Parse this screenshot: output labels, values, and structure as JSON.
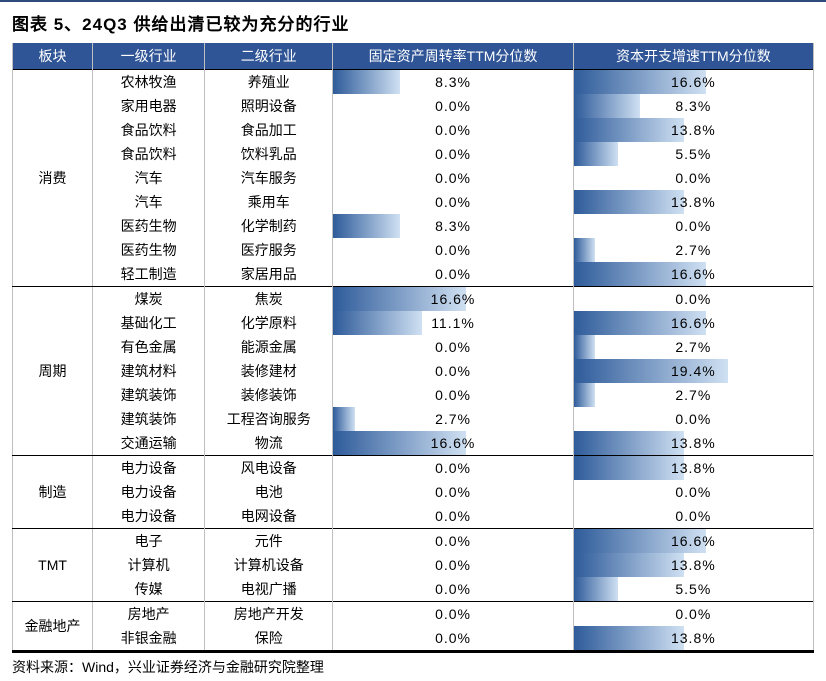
{
  "title": "图表 5、24Q3 供给出清已较为充分的行业",
  "source": "资料来源：Wind，兴业证券经济与金融研究院整理",
  "colors": {
    "header_bg": "#2f5597",
    "header_fg": "#ffffff",
    "bar_start": "#2e5b9a",
    "bar_end": "#cfe0f2",
    "border": "#bfbfbf",
    "frame_top": "#2e4a7a"
  },
  "bar_scale_pct": 30,
  "columns": [
    "板块",
    "一级行业",
    "二级行业",
    "固定资产周转率TTM分位数",
    "资本开支增速TTM分位数"
  ],
  "groups": [
    {
      "sector": "消费",
      "rows": [
        {
          "l1": "农林牧渔",
          "l2": "养殖业",
          "v1": 8.3,
          "v2": 16.6
        },
        {
          "l1": "家用电器",
          "l2": "照明设备",
          "v1": 0.0,
          "v2": 8.3
        },
        {
          "l1": "食品饮料",
          "l2": "食品加工",
          "v1": 0.0,
          "v2": 13.8
        },
        {
          "l1": "食品饮料",
          "l2": "饮料乳品",
          "v1": 0.0,
          "v2": 5.5
        },
        {
          "l1": "汽车",
          "l2": "汽车服务",
          "v1": 0.0,
          "v2": 0.0
        },
        {
          "l1": "汽车",
          "l2": "乘用车",
          "v1": 0.0,
          "v2": 13.8
        },
        {
          "l1": "医药生物",
          "l2": "化学制药",
          "v1": 8.3,
          "v2": 0.0
        },
        {
          "l1": "医药生物",
          "l2": "医疗服务",
          "v1": 0.0,
          "v2": 2.7
        },
        {
          "l1": "轻工制造",
          "l2": "家居用品",
          "v1": 0.0,
          "v2": 16.6
        }
      ]
    },
    {
      "sector": "周期",
      "rows": [
        {
          "l1": "煤炭",
          "l2": "焦炭",
          "v1": 16.6,
          "v2": 0.0
        },
        {
          "l1": "基础化工",
          "l2": "化学原料",
          "v1": 11.1,
          "v2": 16.6
        },
        {
          "l1": "有色金属",
          "l2": "能源金属",
          "v1": 0.0,
          "v2": 2.7
        },
        {
          "l1": "建筑材料",
          "l2": "装修建材",
          "v1": 0.0,
          "v2": 19.4
        },
        {
          "l1": "建筑装饰",
          "l2": "装修装饰",
          "v1": 0.0,
          "v2": 2.7
        },
        {
          "l1": "建筑装饰",
          "l2": "工程咨询服务",
          "v1": 2.7,
          "v2": 0.0
        },
        {
          "l1": "交通运输",
          "l2": "物流",
          "v1": 16.6,
          "v2": 13.8
        }
      ]
    },
    {
      "sector": "制造",
      "rows": [
        {
          "l1": "电力设备",
          "l2": "风电设备",
          "v1": 0.0,
          "v2": 13.8
        },
        {
          "l1": "电力设备",
          "l2": "电池",
          "v1": 0.0,
          "v2": 0.0
        },
        {
          "l1": "电力设备",
          "l2": "电网设备",
          "v1": 0.0,
          "v2": 0.0
        }
      ]
    },
    {
      "sector": "TMT",
      "rows": [
        {
          "l1": "电子",
          "l2": "元件",
          "v1": 0.0,
          "v2": 16.6
        },
        {
          "l1": "计算机",
          "l2": "计算机设备",
          "v1": 0.0,
          "v2": 13.8
        },
        {
          "l1": "传媒",
          "l2": "电视广播",
          "v1": 0.0,
          "v2": 5.5
        }
      ]
    },
    {
      "sector": "金融地产",
      "rows": [
        {
          "l1": "房地产",
          "l2": "房地产开发",
          "v1": 0.0,
          "v2": 0.0
        },
        {
          "l1": "非银金融",
          "l2": "保险",
          "v1": 0.0,
          "v2": 13.8
        }
      ]
    }
  ]
}
